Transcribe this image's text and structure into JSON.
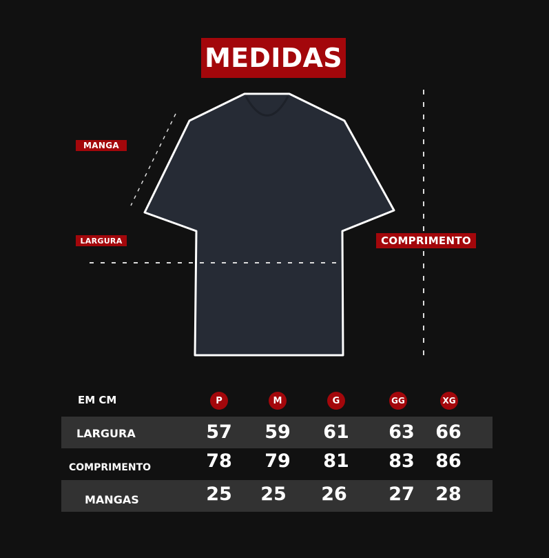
{
  "title": "MEDIDAS",
  "diagram_labels": {
    "manga": "MANGA",
    "largura": "LARGURA",
    "comprimento": "COMPRIMENTO"
  },
  "colors": {
    "background": "#111111",
    "accent": "#a3070b",
    "shirt": "#262b35",
    "row_band": "#323232"
  },
  "table": {
    "unit_label": "EM CM",
    "sizes": [
      "P",
      "M",
      "G",
      "GG",
      "XG"
    ],
    "rows": [
      {
        "label": "LARGURA",
        "values": [
          "57",
          "59",
          "61",
          "63",
          "66"
        ]
      },
      {
        "label": "COMPRIMENTO",
        "values": [
          "78",
          "79",
          "81",
          "83",
          "86"
        ]
      },
      {
        "label": "MANGAS",
        "values": [
          "25",
          "25",
          "26",
          "27",
          "28"
        ]
      }
    ]
  }
}
